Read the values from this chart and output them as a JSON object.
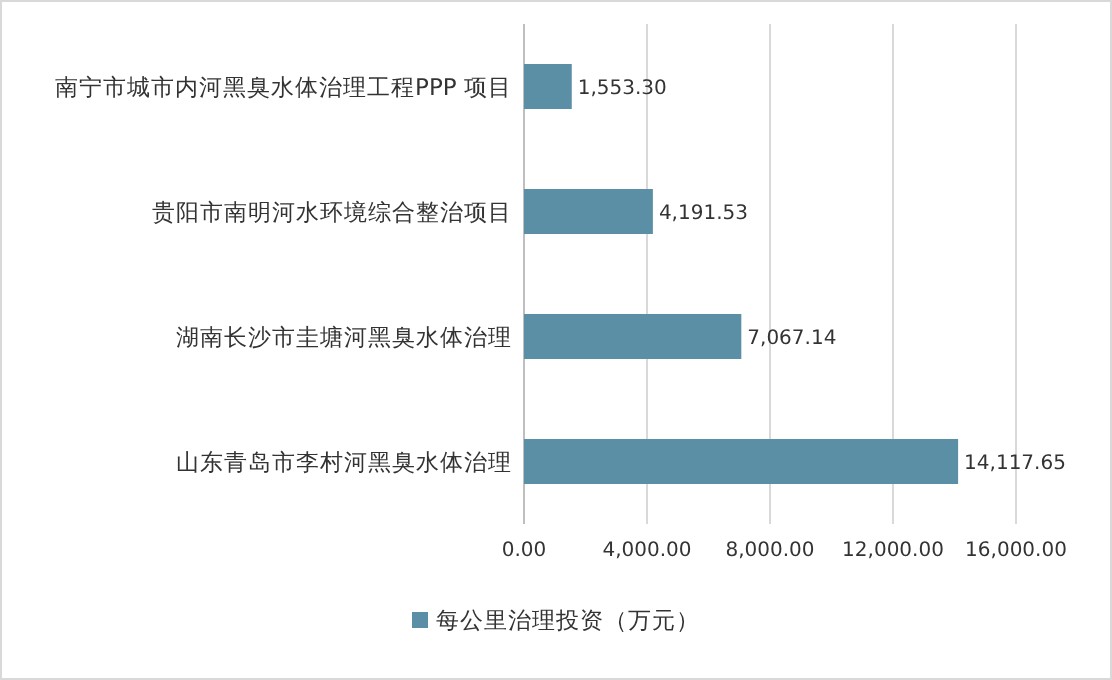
{
  "chart_data": {
    "type": "bar",
    "orientation": "horizontal",
    "categories": [
      "南宁市城市内河黑臭水体治理工程PPP  项目",
      "贵阳市南明河水环境综合整治项目",
      "湖南长沙市圭塘河黑臭水体治理",
      "山东青岛市李村河黑臭水体治理"
    ],
    "series": [
      {
        "name": "每公里治理投资（万元）",
        "color": "#5b8fa6",
        "values": [
          1553.3,
          4191.53,
          7067.14,
          14117.65
        ],
        "value_labels": [
          "1,553.30",
          "4,191.53",
          "7,067.14",
          "14,117.65"
        ]
      }
    ],
    "xlim": [
      0,
      16000
    ],
    "xticks": [
      {
        "value": 0,
        "label": "0.00"
      },
      {
        "value": 4000,
        "label": "4,000.00"
      },
      {
        "value": 8000,
        "label": "8,000.00"
      },
      {
        "value": 12000,
        "label": "12,000.00"
      },
      {
        "value": 16000,
        "label": "16,000.00"
      }
    ],
    "grid": "x",
    "legend": "bottom"
  }
}
